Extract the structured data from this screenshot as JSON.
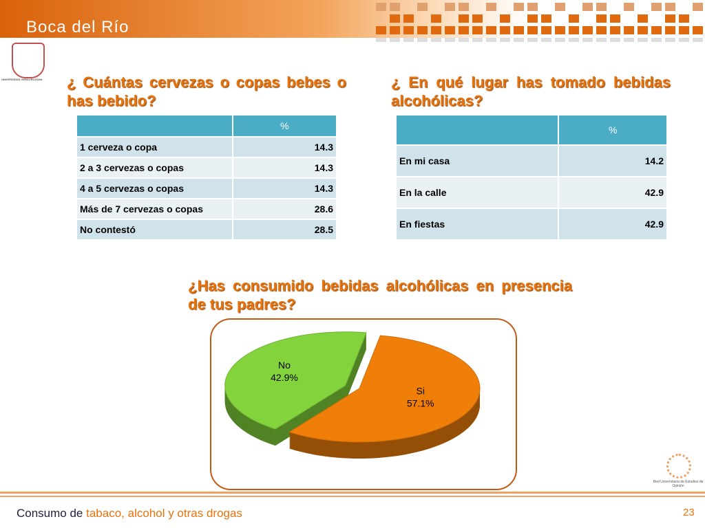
{
  "header": {
    "title": "Boca del Río",
    "logo_text": "UNIVERSIDAD VERACRUZANA"
  },
  "tables": [
    {
      "title": "¿ Cuántas cervezas o copas bebes o has bebido?",
      "column": "%",
      "rows": [
        [
          "1 cerveza o copa",
          14.3
        ],
        [
          "2 a 3 cervezas o copas",
          14.3
        ],
        [
          "4 a 5 cervezas o copas",
          14.3
        ],
        [
          "Más de 7 cervezas o copas",
          28.6
        ],
        [
          "No contestó",
          28.5
        ]
      ]
    },
    {
      "title": "¿ En qué lugar has tomado bebidas alcohólicas?",
      "column": "%",
      "rows": [
        [
          "En mi casa",
          14.2
        ],
        [
          "En la calle",
          42.9
        ],
        [
          "En fiestas",
          42.9
        ]
      ]
    }
  ],
  "chart_data": {
    "type": "pie",
    "title": "¿Has consumido bebidas alcohólicas en presencia de tus padres?",
    "categories": [
      "No",
      "Si"
    ],
    "values": [
      42.9,
      57.1
    ],
    "value_labels": [
      "42.9%",
      "57.1%"
    ],
    "colors": [
      "#82d33c",
      "#f07f0a"
    ]
  },
  "footer": {
    "lead": "Consumo de",
    "topic": "tabaco, alcohol y otras drogas",
    "page": "23",
    "org": "Red Universitaria de Estudios de Opinión"
  }
}
